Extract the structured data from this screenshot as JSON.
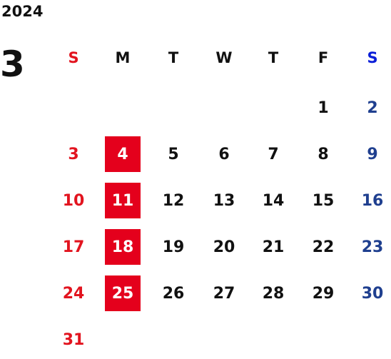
{
  "year": "2024",
  "month": "3",
  "weekdays": [
    "S",
    "M",
    "T",
    "W",
    "T",
    "F",
    "S"
  ],
  "weeks": [
    [
      null,
      null,
      null,
      null,
      null,
      1,
      2
    ],
    [
      3,
      4,
      5,
      6,
      7,
      8,
      9
    ],
    [
      10,
      11,
      12,
      13,
      14,
      15,
      16
    ],
    [
      17,
      18,
      19,
      20,
      21,
      22,
      23
    ],
    [
      24,
      25,
      26,
      27,
      28,
      29,
      30
    ],
    [
      31,
      null,
      null,
      null,
      null,
      null,
      null
    ]
  ]
}
